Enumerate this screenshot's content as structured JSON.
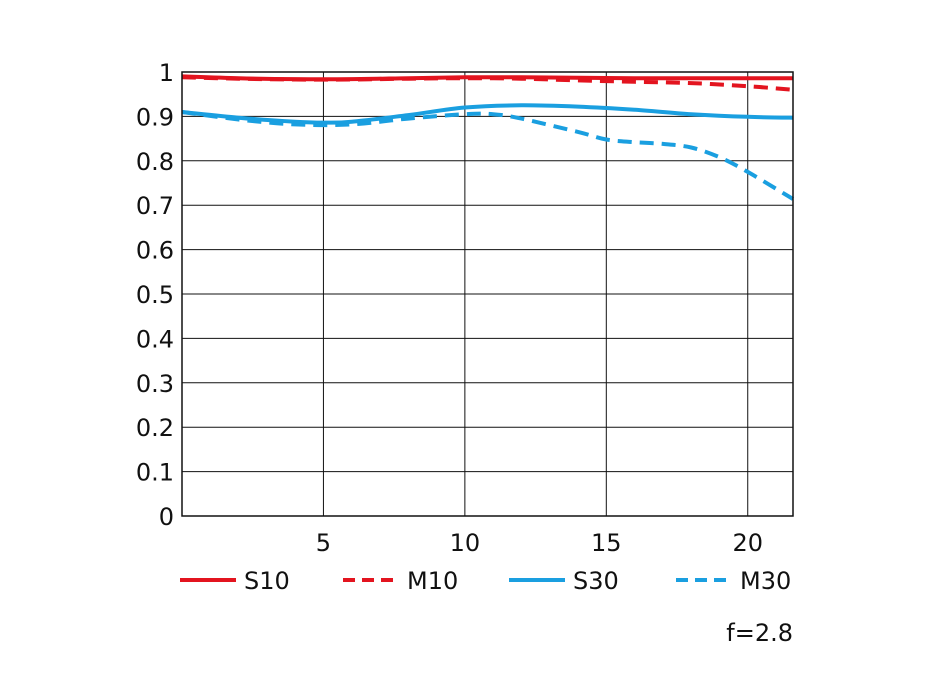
{
  "chart_data": {
    "type": "line",
    "xlim": [
      0,
      21.6
    ],
    "ylim": [
      0,
      1
    ],
    "x_ticks": [
      "5",
      "10",
      "15",
      "20"
    ],
    "y_ticks": [
      "0",
      "0.1",
      "0.2",
      "0.3",
      "0.4",
      "0.5",
      "0.6",
      "0.7",
      "0.8",
      "0.9",
      "1"
    ],
    "grid": true,
    "legend_position": "bottom",
    "annotation": "f=2.8",
    "series": [
      {
        "name": "S10",
        "color": "#e3141f",
        "style": "solid",
        "x": [
          0,
          2,
          4,
          6,
          8,
          10,
          12,
          14,
          16,
          18,
          20,
          21.6
        ],
        "y": [
          0.99,
          0.986,
          0.984,
          0.984,
          0.986,
          0.988,
          0.988,
          0.987,
          0.986,
          0.986,
          0.986,
          0.986
        ]
      },
      {
        "name": "M10",
        "color": "#e3141f",
        "style": "dashed",
        "x": [
          0,
          2,
          4,
          6,
          8,
          10,
          12,
          14,
          16,
          18,
          20,
          21.6
        ],
        "y": [
          0.988,
          0.985,
          0.983,
          0.983,
          0.985,
          0.986,
          0.985,
          0.981,
          0.978,
          0.975,
          0.968,
          0.96
        ]
      },
      {
        "name": "S30",
        "color": "#1a9fe0",
        "style": "solid",
        "x": [
          0,
          2,
          4,
          5,
          6,
          8,
          10,
          12,
          14,
          16,
          18,
          20,
          21.6
        ],
        "y": [
          0.91,
          0.897,
          0.888,
          0.886,
          0.888,
          0.903,
          0.92,
          0.925,
          0.922,
          0.915,
          0.905,
          0.899,
          0.897
        ]
      },
      {
        "name": "M30",
        "color": "#1a9fe0",
        "style": "dashed",
        "x": [
          0,
          2,
          4,
          6,
          8,
          10,
          11,
          12,
          14,
          15,
          16,
          17,
          18,
          19,
          20,
          21.6
        ],
        "y": [
          0.91,
          0.893,
          0.882,
          0.882,
          0.895,
          0.905,
          0.905,
          0.895,
          0.865,
          0.848,
          0.842,
          0.838,
          0.83,
          0.808,
          0.775,
          0.714
        ]
      }
    ]
  }
}
